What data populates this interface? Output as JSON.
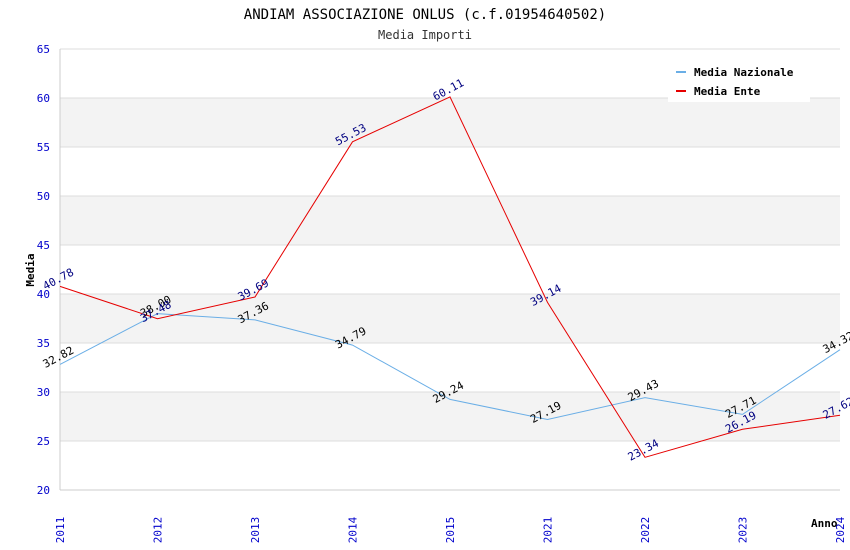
{
  "chart_data": {
    "type": "line",
    "title": "ANDIAM ASSOCIAZIONE ONLUS (c.f.01954640502)",
    "subtitle": "Media Importi",
    "xlabel": "Anno",
    "ylabel": "Media",
    "categories": [
      "2011",
      "2012",
      "2013",
      "2014",
      "2015",
      "2021",
      "2022",
      "2023",
      "2024"
    ],
    "ylim": [
      20,
      65
    ],
    "yticks": [
      "20",
      "25",
      "30",
      "35",
      "40",
      "45",
      "50",
      "55",
      "60",
      "65"
    ],
    "grid": true,
    "legend_position": "top-right",
    "series": [
      {
        "name": "Media Nazionale",
        "color": "#6aaee6",
        "values": [
          32.82,
          38.0,
          37.36,
          34.79,
          29.24,
          27.19,
          29.43,
          27.71,
          34.32
        ],
        "labels": [
          "32.82",
          "38.00",
          "37.36",
          "34.79",
          "29.24",
          "27.19",
          "29.43",
          "27.71",
          "34.32"
        ]
      },
      {
        "name": "Media Ente",
        "color": "#e60000",
        "values": [
          40.78,
          37.48,
          39.69,
          55.53,
          60.11,
          39.14,
          23.34,
          26.19,
          27.62
        ],
        "labels": [
          "40.78",
          "37.48",
          "39.69",
          "55.53",
          "60.11",
          "39.14",
          "23.34",
          "26.19",
          "27.62"
        ]
      }
    ]
  }
}
